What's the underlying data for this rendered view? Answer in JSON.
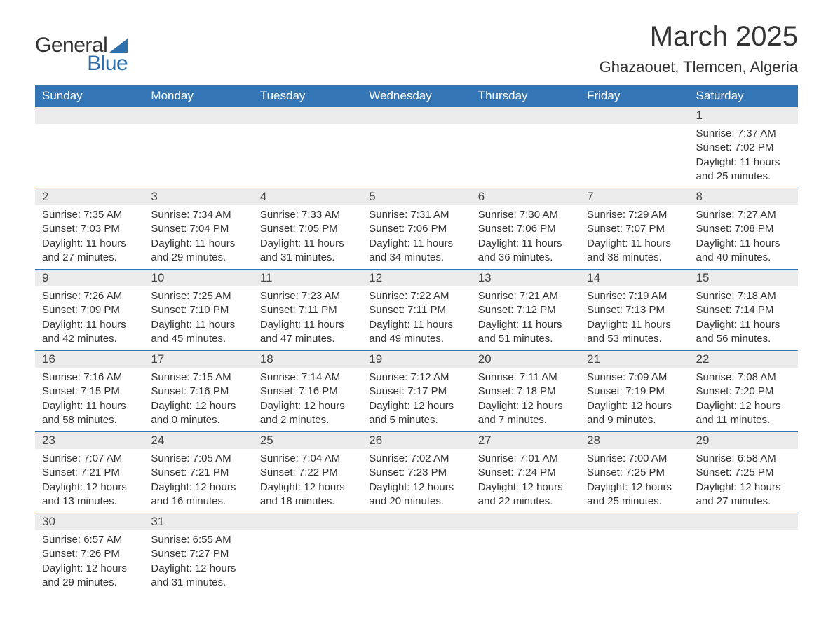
{
  "brand": {
    "part1": "General",
    "part2": "Blue"
  },
  "title": "March 2025",
  "location": "Ghazaouet, Tlemcen, Algeria",
  "colors": {
    "header_bg": "#3475b6",
    "accent": "#2f6fab",
    "daynum_bg": "#ececec",
    "text": "#333333",
    "bg": "#ffffff"
  },
  "weekdays": [
    "Sunday",
    "Monday",
    "Tuesday",
    "Wednesday",
    "Thursday",
    "Friday",
    "Saturday"
  ],
  "first_day_index": 6,
  "days": [
    {
      "n": 1,
      "sunrise": "7:37 AM",
      "sunset": "7:02 PM",
      "dl": "11 hours and 25 minutes."
    },
    {
      "n": 2,
      "sunrise": "7:35 AM",
      "sunset": "7:03 PM",
      "dl": "11 hours and 27 minutes."
    },
    {
      "n": 3,
      "sunrise": "7:34 AM",
      "sunset": "7:04 PM",
      "dl": "11 hours and 29 minutes."
    },
    {
      "n": 4,
      "sunrise": "7:33 AM",
      "sunset": "7:05 PM",
      "dl": "11 hours and 31 minutes."
    },
    {
      "n": 5,
      "sunrise": "7:31 AM",
      "sunset": "7:06 PM",
      "dl": "11 hours and 34 minutes."
    },
    {
      "n": 6,
      "sunrise": "7:30 AM",
      "sunset": "7:06 PM",
      "dl": "11 hours and 36 minutes."
    },
    {
      "n": 7,
      "sunrise": "7:29 AM",
      "sunset": "7:07 PM",
      "dl": "11 hours and 38 minutes."
    },
    {
      "n": 8,
      "sunrise": "7:27 AM",
      "sunset": "7:08 PM",
      "dl": "11 hours and 40 minutes."
    },
    {
      "n": 9,
      "sunrise": "7:26 AM",
      "sunset": "7:09 PM",
      "dl": "11 hours and 42 minutes."
    },
    {
      "n": 10,
      "sunrise": "7:25 AM",
      "sunset": "7:10 PM",
      "dl": "11 hours and 45 minutes."
    },
    {
      "n": 11,
      "sunrise": "7:23 AM",
      "sunset": "7:11 PM",
      "dl": "11 hours and 47 minutes."
    },
    {
      "n": 12,
      "sunrise": "7:22 AM",
      "sunset": "7:11 PM",
      "dl": "11 hours and 49 minutes."
    },
    {
      "n": 13,
      "sunrise": "7:21 AM",
      "sunset": "7:12 PM",
      "dl": "11 hours and 51 minutes."
    },
    {
      "n": 14,
      "sunrise": "7:19 AM",
      "sunset": "7:13 PM",
      "dl": "11 hours and 53 minutes."
    },
    {
      "n": 15,
      "sunrise": "7:18 AM",
      "sunset": "7:14 PM",
      "dl": "11 hours and 56 minutes."
    },
    {
      "n": 16,
      "sunrise": "7:16 AM",
      "sunset": "7:15 PM",
      "dl": "11 hours and 58 minutes."
    },
    {
      "n": 17,
      "sunrise": "7:15 AM",
      "sunset": "7:16 PM",
      "dl": "12 hours and 0 minutes."
    },
    {
      "n": 18,
      "sunrise": "7:14 AM",
      "sunset": "7:16 PM",
      "dl": "12 hours and 2 minutes."
    },
    {
      "n": 19,
      "sunrise": "7:12 AM",
      "sunset": "7:17 PM",
      "dl": "12 hours and 5 minutes."
    },
    {
      "n": 20,
      "sunrise": "7:11 AM",
      "sunset": "7:18 PM",
      "dl": "12 hours and 7 minutes."
    },
    {
      "n": 21,
      "sunrise": "7:09 AM",
      "sunset": "7:19 PM",
      "dl": "12 hours and 9 minutes."
    },
    {
      "n": 22,
      "sunrise": "7:08 AM",
      "sunset": "7:20 PM",
      "dl": "12 hours and 11 minutes."
    },
    {
      "n": 23,
      "sunrise": "7:07 AM",
      "sunset": "7:21 PM",
      "dl": "12 hours and 13 minutes."
    },
    {
      "n": 24,
      "sunrise": "7:05 AM",
      "sunset": "7:21 PM",
      "dl": "12 hours and 16 minutes."
    },
    {
      "n": 25,
      "sunrise": "7:04 AM",
      "sunset": "7:22 PM",
      "dl": "12 hours and 18 minutes."
    },
    {
      "n": 26,
      "sunrise": "7:02 AM",
      "sunset": "7:23 PM",
      "dl": "12 hours and 20 minutes."
    },
    {
      "n": 27,
      "sunrise": "7:01 AM",
      "sunset": "7:24 PM",
      "dl": "12 hours and 22 minutes."
    },
    {
      "n": 28,
      "sunrise": "7:00 AM",
      "sunset": "7:25 PM",
      "dl": "12 hours and 25 minutes."
    },
    {
      "n": 29,
      "sunrise": "6:58 AM",
      "sunset": "7:25 PM",
      "dl": "12 hours and 27 minutes."
    },
    {
      "n": 30,
      "sunrise": "6:57 AM",
      "sunset": "7:26 PM",
      "dl": "12 hours and 29 minutes."
    },
    {
      "n": 31,
      "sunrise": "6:55 AM",
      "sunset": "7:27 PM",
      "dl": "12 hours and 31 minutes."
    }
  ],
  "labels": {
    "sunrise": "Sunrise:",
    "sunset": "Sunset:",
    "daylight": "Daylight:"
  }
}
